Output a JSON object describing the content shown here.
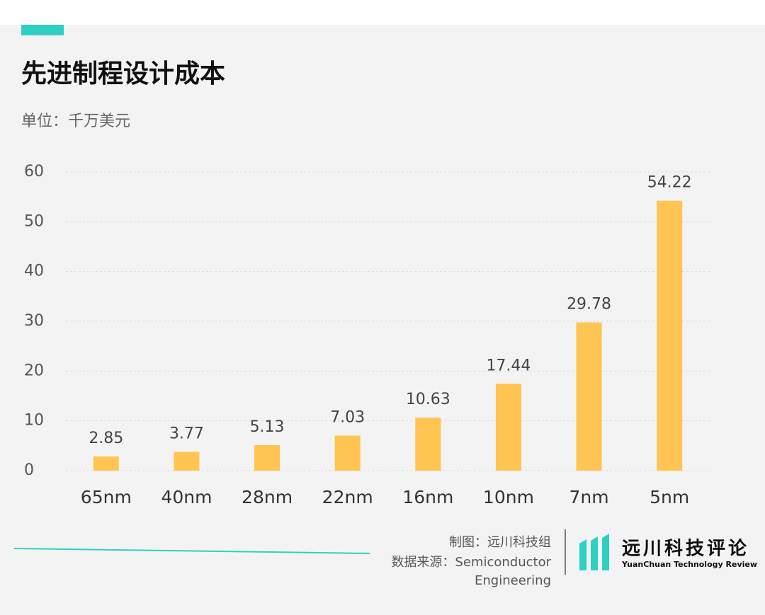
{
  "chart_data": {
    "type": "bar",
    "title": "先进制程设计成本",
    "subtitle": "单位：千万美元",
    "categories": [
      "65nm",
      "40nm",
      "28nm",
      "22nm",
      "16nm",
      "10nm",
      "7nm",
      "5nm"
    ],
    "values": [
      2.85,
      3.77,
      5.13,
      7.03,
      10.63,
      17.44,
      29.78,
      54.22
    ],
    "color": "#ffc451",
    "ylim": [
      0,
      60
    ],
    "yticks": [
      0,
      10,
      20,
      30,
      40,
      50,
      60
    ],
    "grid": true
  },
  "footer": {
    "credit": "制图：远川科技组",
    "source": "数据来源：Semiconductor Engineering",
    "logo_name": "远川科技评论",
    "logo_subtitle": "YuanChuan Technology Review"
  }
}
